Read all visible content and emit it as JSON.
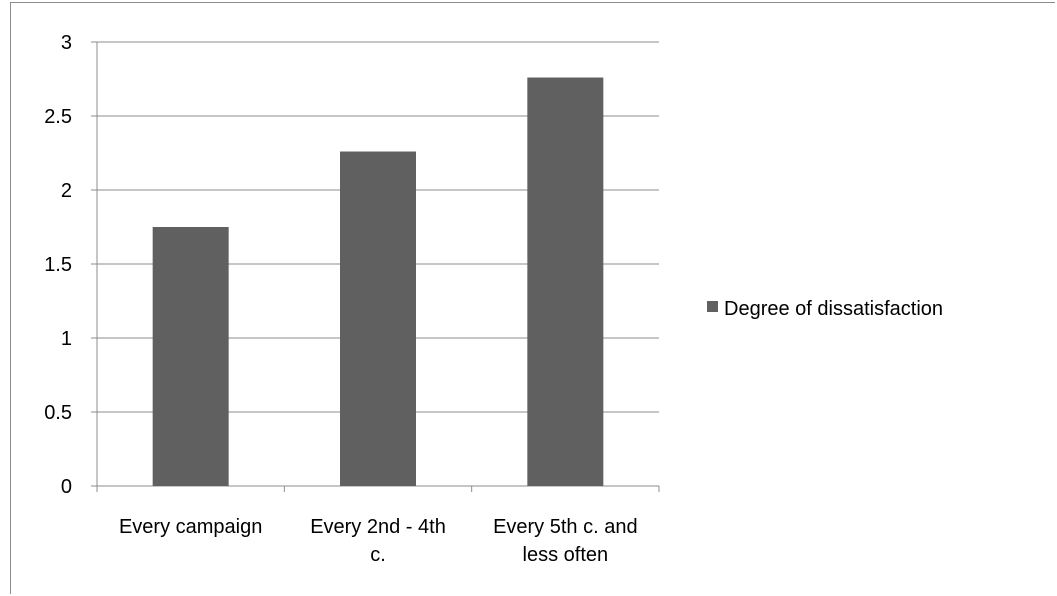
{
  "chart_data": {
    "type": "bar",
    "categories": [
      [
        "Every campaign"
      ],
      [
        "Every 2nd - 4th",
        "c."
      ],
      [
        "Every 5th c. and",
        "less often"
      ]
    ],
    "series": [
      {
        "name": "Degree of dissatisfaction",
        "values": [
          1.75,
          2.26,
          2.76
        ],
        "color": "#606060"
      }
    ],
    "yticks": [
      "0",
      "0.5",
      "1",
      "1.5",
      "2",
      "2.5",
      "3"
    ],
    "ylim": [
      0,
      3
    ],
    "grid": true,
    "legend_position": "right",
    "title": "",
    "xlabel": "",
    "ylabel": ""
  }
}
